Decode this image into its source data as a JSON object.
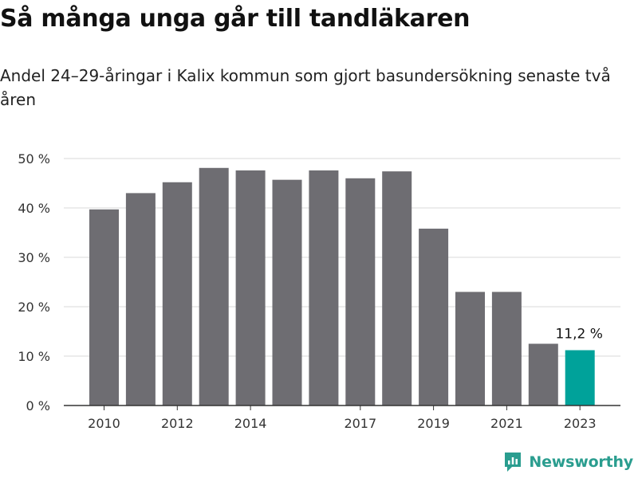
{
  "title": "Så många unga går till tandläkaren",
  "subtitle": "Andel 24–29-åringar i Kalix kommun som gjort basundersökning senaste två åren",
  "brand": {
    "name": "Newsworthy",
    "color": "#2a9d8f"
  },
  "colors": {
    "bar": "#6e6d72",
    "highlight": "#00a29a",
    "grid": "#d9d9d9",
    "axis": "#333333"
  },
  "chart_data": {
    "type": "bar",
    "x": [
      2010,
      2011,
      2012,
      2013,
      2014,
      2015,
      2016,
      2017,
      2018,
      2019,
      2020,
      2021,
      2022,
      2023
    ],
    "values": [
      39.7,
      43.0,
      45.2,
      48.1,
      47.6,
      45.7,
      47.6,
      46.0,
      47.4,
      35.8,
      23.0,
      23.0,
      12.5,
      11.2
    ],
    "x_tick_labels": [
      "2010",
      "2012",
      "2014",
      "2017",
      "2019",
      "2021",
      "2023"
    ],
    "y_ticks": [
      0,
      10,
      20,
      30,
      40,
      50
    ],
    "y_tick_labels": [
      "0 %",
      "10 %",
      "20 %",
      "30 %",
      "40 %",
      "50 %"
    ],
    "ylim": [
      0,
      50
    ],
    "grid": true,
    "highlight_index": 13,
    "annotation": "11,2 %",
    "xlabel": "",
    "ylabel": ""
  }
}
